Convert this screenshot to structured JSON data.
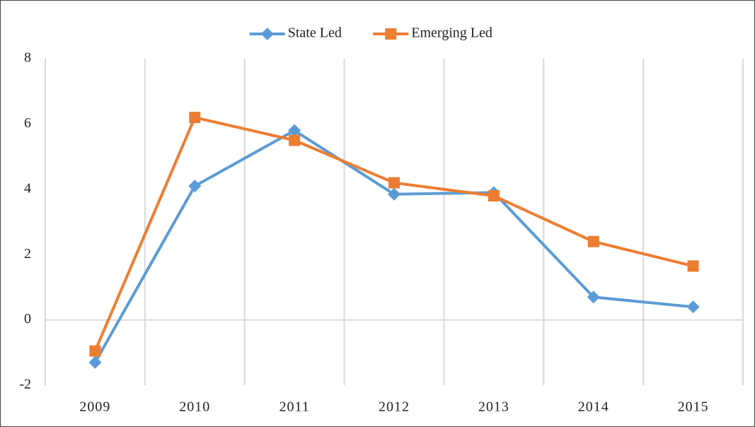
{
  "chart_data": {
    "type": "line",
    "categories": [
      "2009",
      "2010",
      "2011",
      "2012",
      "2013",
      "2014",
      "2015"
    ],
    "series": [
      {
        "name": "State Led",
        "color": "#5b9bd5",
        "marker": "diamond",
        "values": [
          -1.3,
          4.1,
          5.8,
          3.85,
          3.9,
          0.7,
          0.4
        ]
      },
      {
        "name": "Emerging Led",
        "color": "#ed7d31",
        "marker": "square",
        "values": [
          -0.95,
          6.2,
          5.5,
          4.2,
          3.8,
          2.4,
          1.65
        ]
      }
    ],
    "ylim": [
      -2,
      8
    ],
    "yticks": [
      -2,
      0,
      2,
      4,
      6,
      8
    ],
    "grid": true,
    "legend": "top"
  }
}
